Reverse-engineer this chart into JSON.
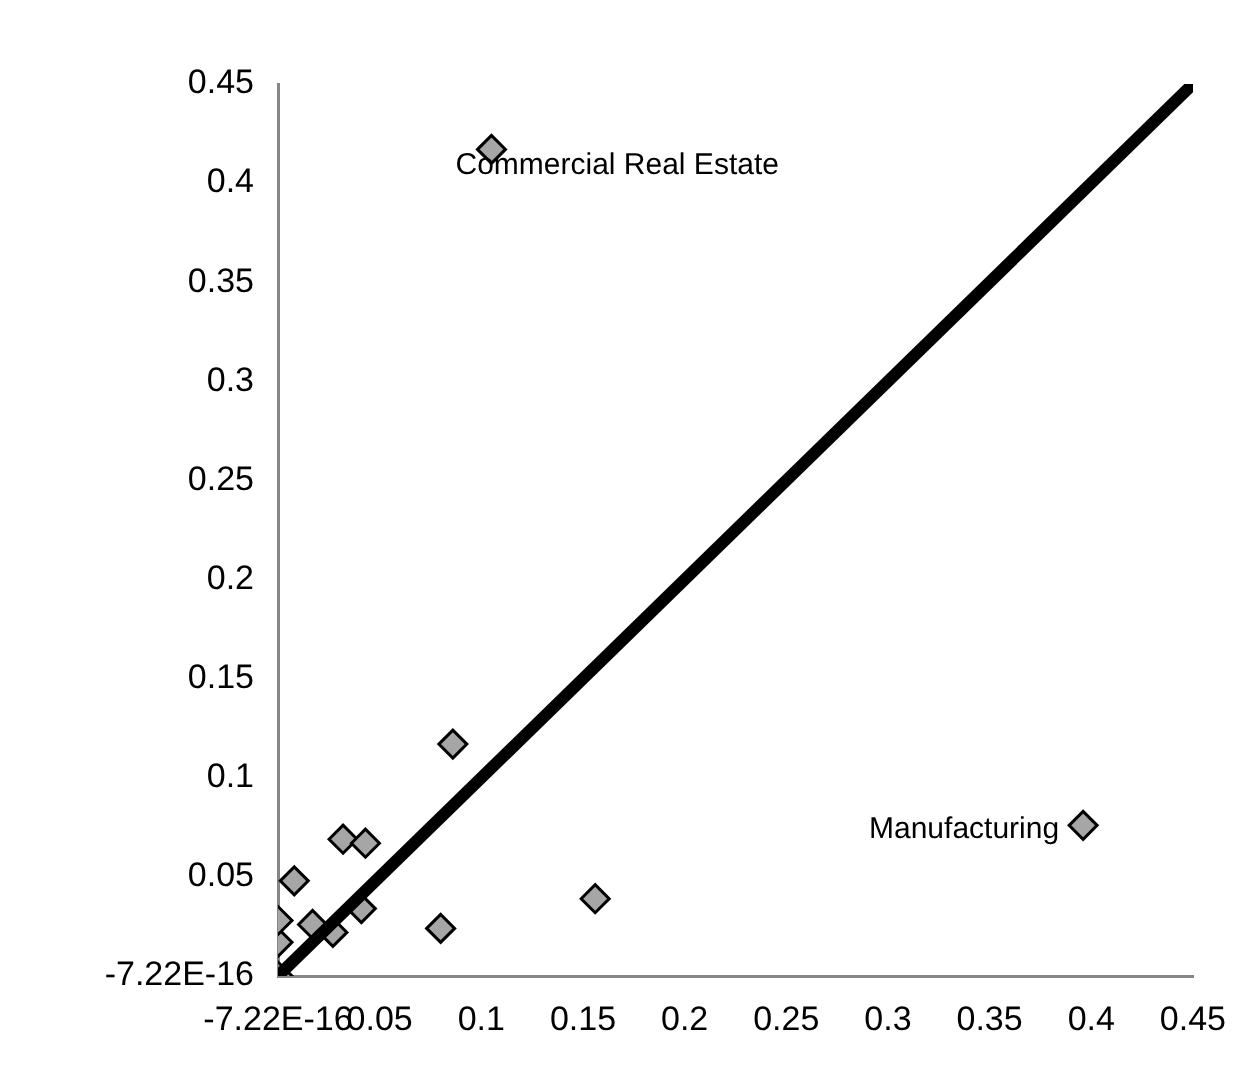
{
  "chart_data": {
    "type": "scatter",
    "grid": false,
    "legend": false,
    "xlim": [
      0,
      0.45
    ],
    "ylim": [
      0,
      0.45
    ],
    "xticks": [
      {
        "value": 0,
        "label": "-7.22E-16"
      },
      0.05,
      0.1,
      0.15,
      0.2,
      0.25,
      0.3,
      0.35,
      0.4,
      0.45
    ],
    "yticks": [
      {
        "value": 0,
        "label": "-7.22E-16"
      },
      0.05,
      0.1,
      0.15,
      0.2,
      0.25,
      0.3,
      0.35,
      0.4,
      0.45
    ],
    "series": [
      {
        "marker": "diamond",
        "color": "#a6a6a6",
        "x": [
          0,
          0,
          0,
          0.008,
          0.017,
          0.027,
          0.032,
          0.043,
          0.041,
          0.08,
          0.156,
          0.086,
          0.105,
          0.396
        ],
        "values": [
          0,
          0.017,
          0.028,
          0.048,
          0.026,
          0.022,
          0.069,
          0.067,
          0.034,
          0.024,
          0.039,
          0.117,
          0.417,
          0.076
        ]
      },
      {
        "type": "line",
        "color": "#000000",
        "x": [
          0,
          0.45
        ],
        "values": [
          0,
          0.45
        ]
      }
    ],
    "annotations": [
      {
        "text": "Commercial Real Estate",
        "x": 0.105,
        "y": 0.417
      },
      {
        "text": "Manufacturing",
        "x": 0.396,
        "y": 0.076
      }
    ]
  }
}
